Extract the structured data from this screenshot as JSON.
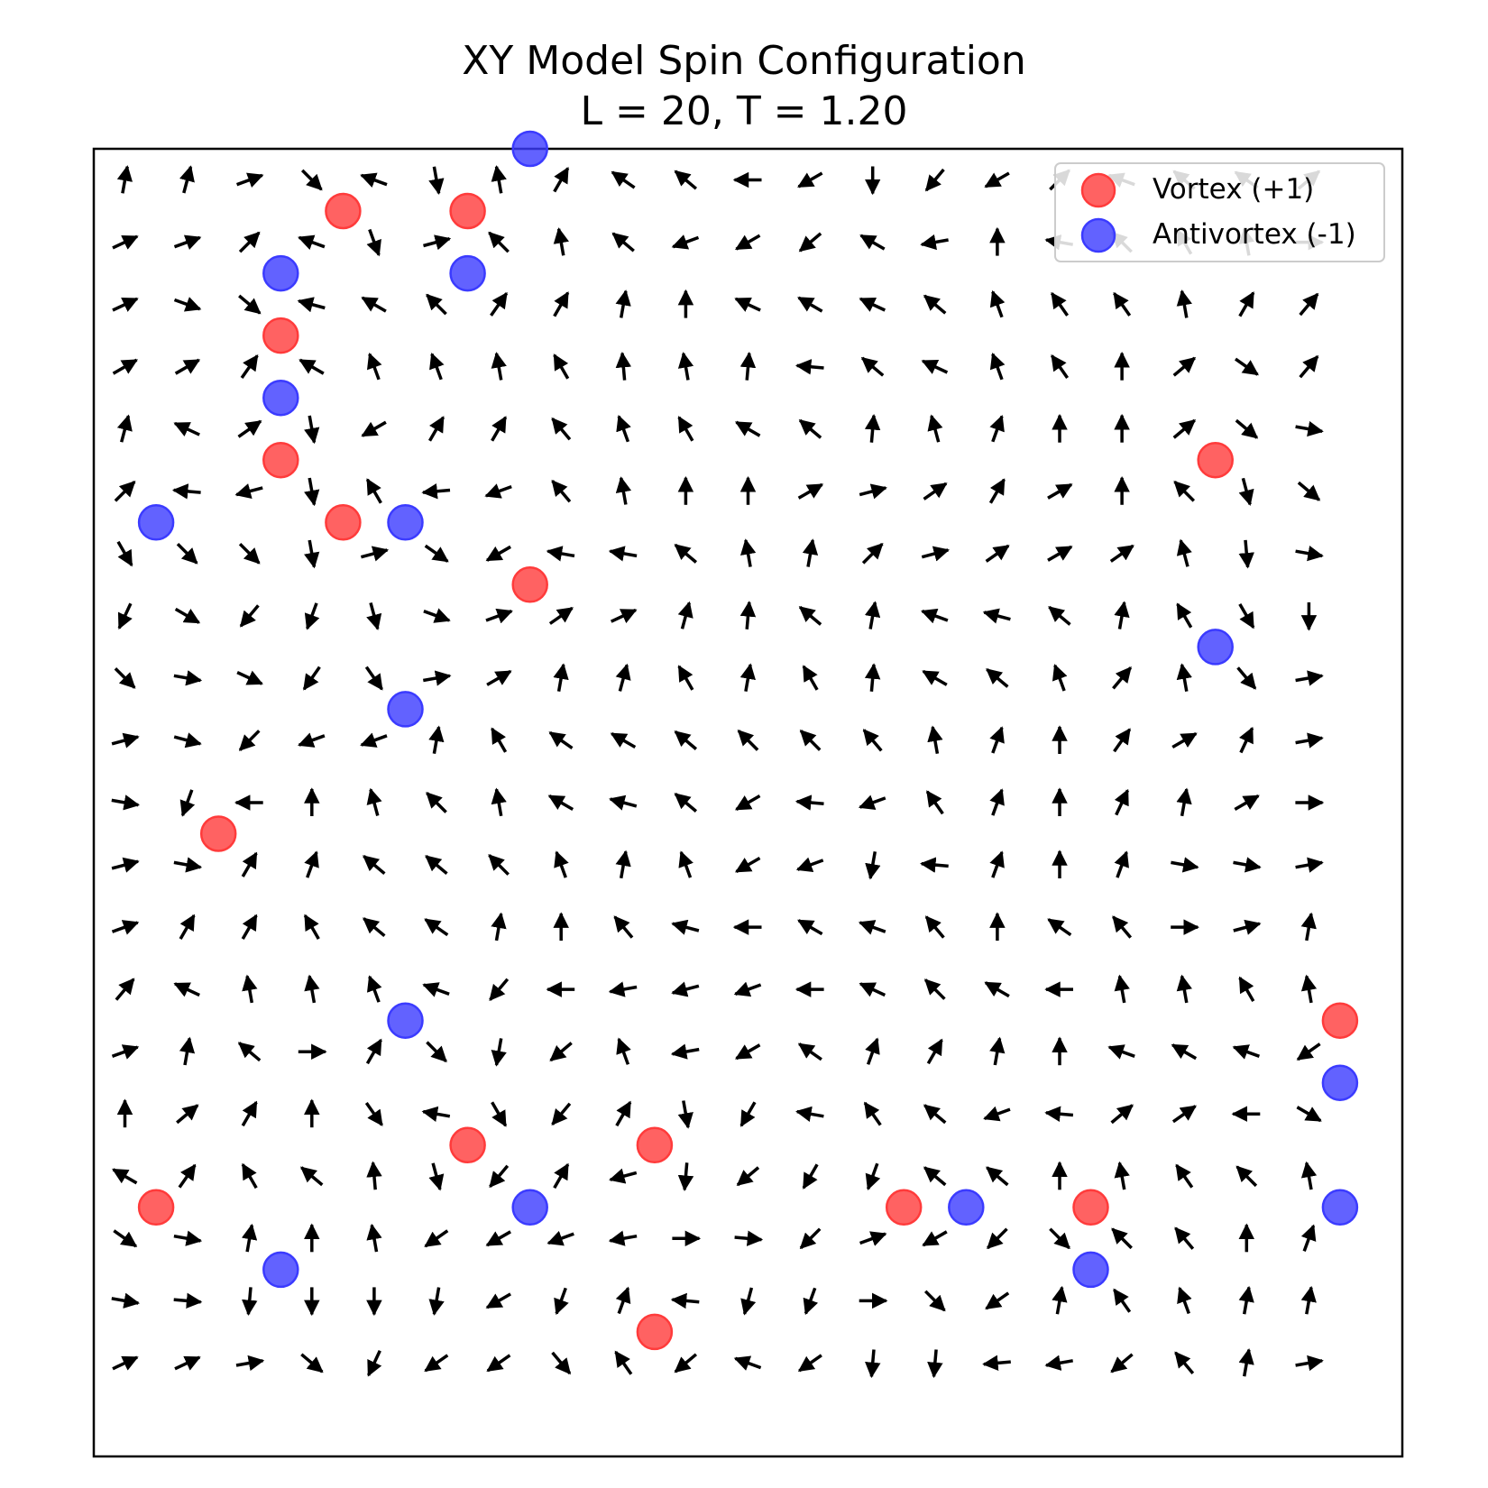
{
  "title": "XY Model Spin Configuration",
  "subtitle": "L = 20, T = 1.20",
  "legend": {
    "placement": "top-right",
    "vortex_label": "Vortex (+1)",
    "antivortex_label": "Antivortex (-1)"
  },
  "colors": {
    "vortex": "#ff3b3b",
    "antivortex": "#3b3bff",
    "arrow": "#000000"
  },
  "chart_data": {
    "type": "scatter",
    "subtype": "quiver",
    "lattice_size": 20,
    "temperature": 1.2,
    "xlim": [
      -0.5,
      20.5
    ],
    "ylim": [
      -0.5,
      20.5
    ],
    "grid": false,
    "spin_angles_deg_rows_top_to_bottom": [
      [
        80,
        75,
        20,
        -45,
        160,
        -80,
        100,
        60,
        145,
        140,
        180,
        210,
        270,
        230,
        210,
        45,
        160,
        140,
        145,
        40
      ],
      [
        25,
        20,
        45,
        160,
        -70,
        15,
        135,
        100,
        140,
        200,
        210,
        220,
        150,
        190,
        90,
        170,
        135,
        120,
        100,
        0
      ],
      [
        25,
        -20,
        -40,
        165,
        150,
        135,
        55,
        60,
        80,
        90,
        155,
        150,
        155,
        140,
        110,
        125,
        125,
        100,
        60,
        50
      ],
      [
        30,
        30,
        55,
        150,
        110,
        110,
        100,
        120,
        95,
        100,
        85,
        175,
        140,
        155,
        110,
        125,
        90,
        40,
        -35,
        50
      ],
      [
        75,
        155,
        35,
        -80,
        210,
        60,
        60,
        130,
        110,
        120,
        150,
        140,
        85,
        105,
        70,
        90,
        90,
        40,
        -40,
        -10
      ],
      [
        45,
        175,
        195,
        -80,
        120,
        185,
        200,
        130,
        100,
        90,
        90,
        30,
        15,
        35,
        60,
        30,
        90,
        135,
        -75,
        -40
      ],
      [
        -60,
        -45,
        -45,
        -80,
        15,
        -35,
        210,
        170,
        170,
        140,
        100,
        80,
        45,
        15,
        35,
        30,
        35,
        105,
        -85,
        -10
      ],
      [
        245,
        -30,
        230,
        250,
        -75,
        -20,
        20,
        35,
        25,
        75,
        85,
        140,
        80,
        160,
        165,
        140,
        80,
        120,
        -60,
        -90
      ],
      [
        -45,
        -10,
        -25,
        235,
        -55,
        10,
        30,
        80,
        75,
        120,
        80,
        120,
        85,
        150,
        140,
        110,
        50,
        100,
        -50,
        10
      ],
      [
        15,
        -15,
        225,
        200,
        200,
        80,
        120,
        145,
        150,
        140,
        135,
        135,
        130,
        100,
        70,
        90,
        55,
        30,
        65,
        10
      ],
      [
        -10,
        250,
        180,
        90,
        105,
        135,
        100,
        150,
        165,
        140,
        210,
        175,
        200,
        125,
        70,
        90,
        65,
        80,
        30,
        0
      ],
      [
        15,
        -10,
        60,
        70,
        140,
        140,
        135,
        110,
        80,
        110,
        210,
        200,
        260,
        175,
        70,
        90,
        70,
        -10,
        -10,
        10
      ],
      [
        20,
        60,
        60,
        120,
        140,
        145,
        80,
        90,
        130,
        165,
        180,
        150,
        160,
        130,
        90,
        145,
        130,
        0,
        15,
        80
      ],
      [
        50,
        155,
        100,
        100,
        110,
        160,
        230,
        180,
        190,
        195,
        200,
        180,
        155,
        135,
        150,
        180,
        100,
        100,
        120,
        100
      ],
      [
        20,
        80,
        140,
        0,
        60,
        -45,
        260,
        220,
        110,
        190,
        210,
        145,
        70,
        60,
        80,
        90,
        160,
        150,
        160,
        215
      ],
      [
        90,
        40,
        60,
        90,
        -55,
        170,
        -60,
        230,
        60,
        -80,
        240,
        170,
        125,
        140,
        200,
        175,
        40,
        35,
        180,
        -30
      ],
      [
        150,
        55,
        120,
        140,
        95,
        285,
        230,
        60,
        195,
        265,
        220,
        240,
        250,
        140,
        140,
        90,
        100,
        125,
        135,
        100
      ],
      [
        -35,
        -10,
        80,
        90,
        100,
        215,
        210,
        200,
        190,
        0,
        -5,
        225,
        20,
        210,
        225,
        -45,
        135,
        130,
        90,
        70
      ],
      [
        -10,
        -5,
        265,
        270,
        270,
        260,
        210,
        250,
        70,
        175,
        255,
        250,
        0,
        -45,
        215,
        80,
        125,
        110,
        80,
        80
      ],
      [
        25,
        25,
        10,
        -40,
        245,
        215,
        215,
        -50,
        125,
        220,
        160,
        215,
        265,
        265,
        185,
        190,
        220,
        130,
        80,
        10
      ]
    ],
    "vortices_plus_1": [
      [
        3.5,
        0.5
      ],
      [
        5.5,
        0.5
      ],
      [
        2.5,
        2.5
      ],
      [
        2.5,
        4.5
      ],
      [
        3.5,
        5.5
      ],
      [
        6.5,
        6.5
      ],
      [
        17.5,
        4.5
      ],
      [
        1.5,
        10.5
      ],
      [
        19.5,
        13.5
      ],
      [
        5.5,
        15.5
      ],
      [
        8.5,
        15.5
      ],
      [
        0.5,
        16.5
      ],
      [
        12.5,
        16.5
      ],
      [
        15.5,
        16.5
      ],
      [
        8.5,
        18.5
      ]
    ],
    "antivortices_minus_1": [
      [
        6.5,
        -0.5
      ],
      [
        2.5,
        1.5
      ],
      [
        5.5,
        1.5
      ],
      [
        2.5,
        3.5
      ],
      [
        0.5,
        5.5
      ],
      [
        4.5,
        5.5
      ],
      [
        17.5,
        7.5
      ],
      [
        4.5,
        8.5
      ],
      [
        4.5,
        13.5
      ],
      [
        19.5,
        14.5
      ],
      [
        6.5,
        16.5
      ],
      [
        13.5,
        16.5
      ],
      [
        19.5,
        16.5
      ],
      [
        2.5,
        17.5
      ],
      [
        15.5,
        17.5
      ]
    ]
  }
}
